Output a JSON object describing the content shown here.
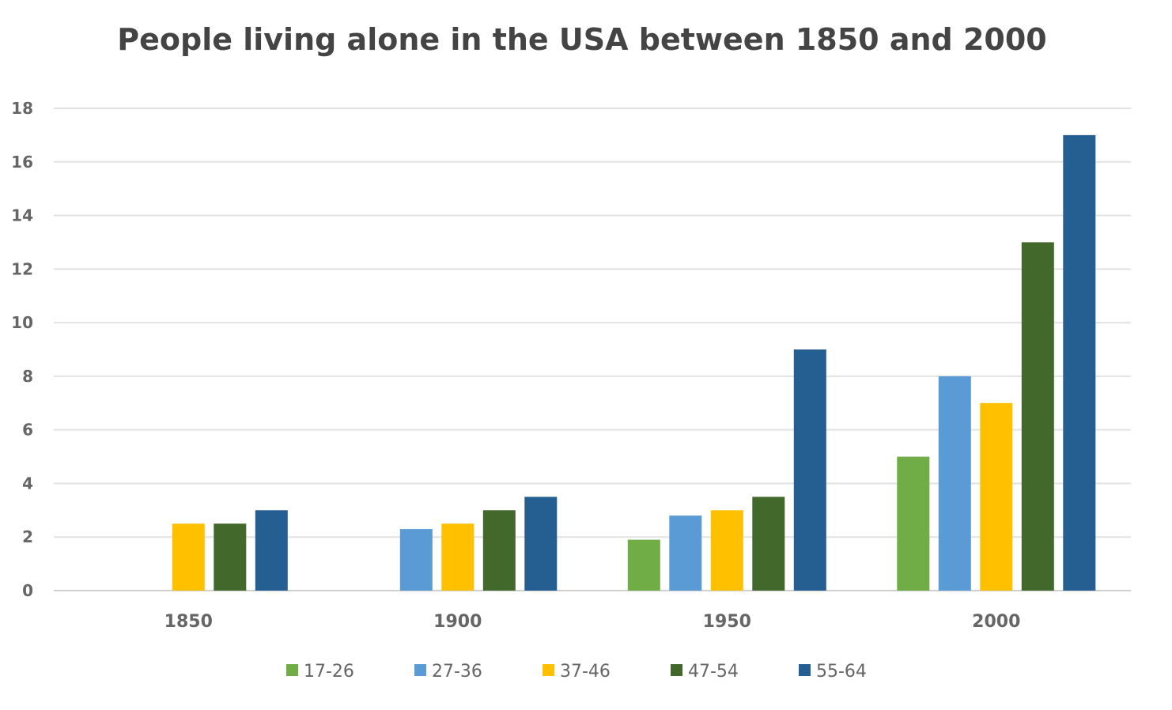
{
  "chart_data": {
    "type": "bar",
    "title": "People living alone in the USA between 1850 and 2000",
    "xlabel": "",
    "ylabel": "",
    "categories": [
      "1850",
      "1900",
      "1950",
      "2000"
    ],
    "ylim": [
      0,
      18
    ],
    "yticks": [
      0,
      2,
      4,
      6,
      8,
      10,
      12,
      14,
      16,
      18
    ],
    "grid": true,
    "legend_position": "bottom",
    "series": [
      {
        "name": "17-26",
        "color": "#70ad47",
        "values": [
          null,
          null,
          1.9,
          5
        ]
      },
      {
        "name": "27-36",
        "color": "#5b9bd5",
        "values": [
          null,
          2.3,
          2.8,
          8
        ]
      },
      {
        "name": "37-46",
        "color": "#ffc000",
        "values": [
          2.5,
          2.5,
          3,
          7
        ]
      },
      {
        "name": "47-54",
        "color": "#43682b",
        "values": [
          2.5,
          3,
          3.5,
          13
        ]
      },
      {
        "name": "55-64",
        "color": "#255e91",
        "values": [
          3,
          3.5,
          9,
          17
        ]
      }
    ]
  }
}
